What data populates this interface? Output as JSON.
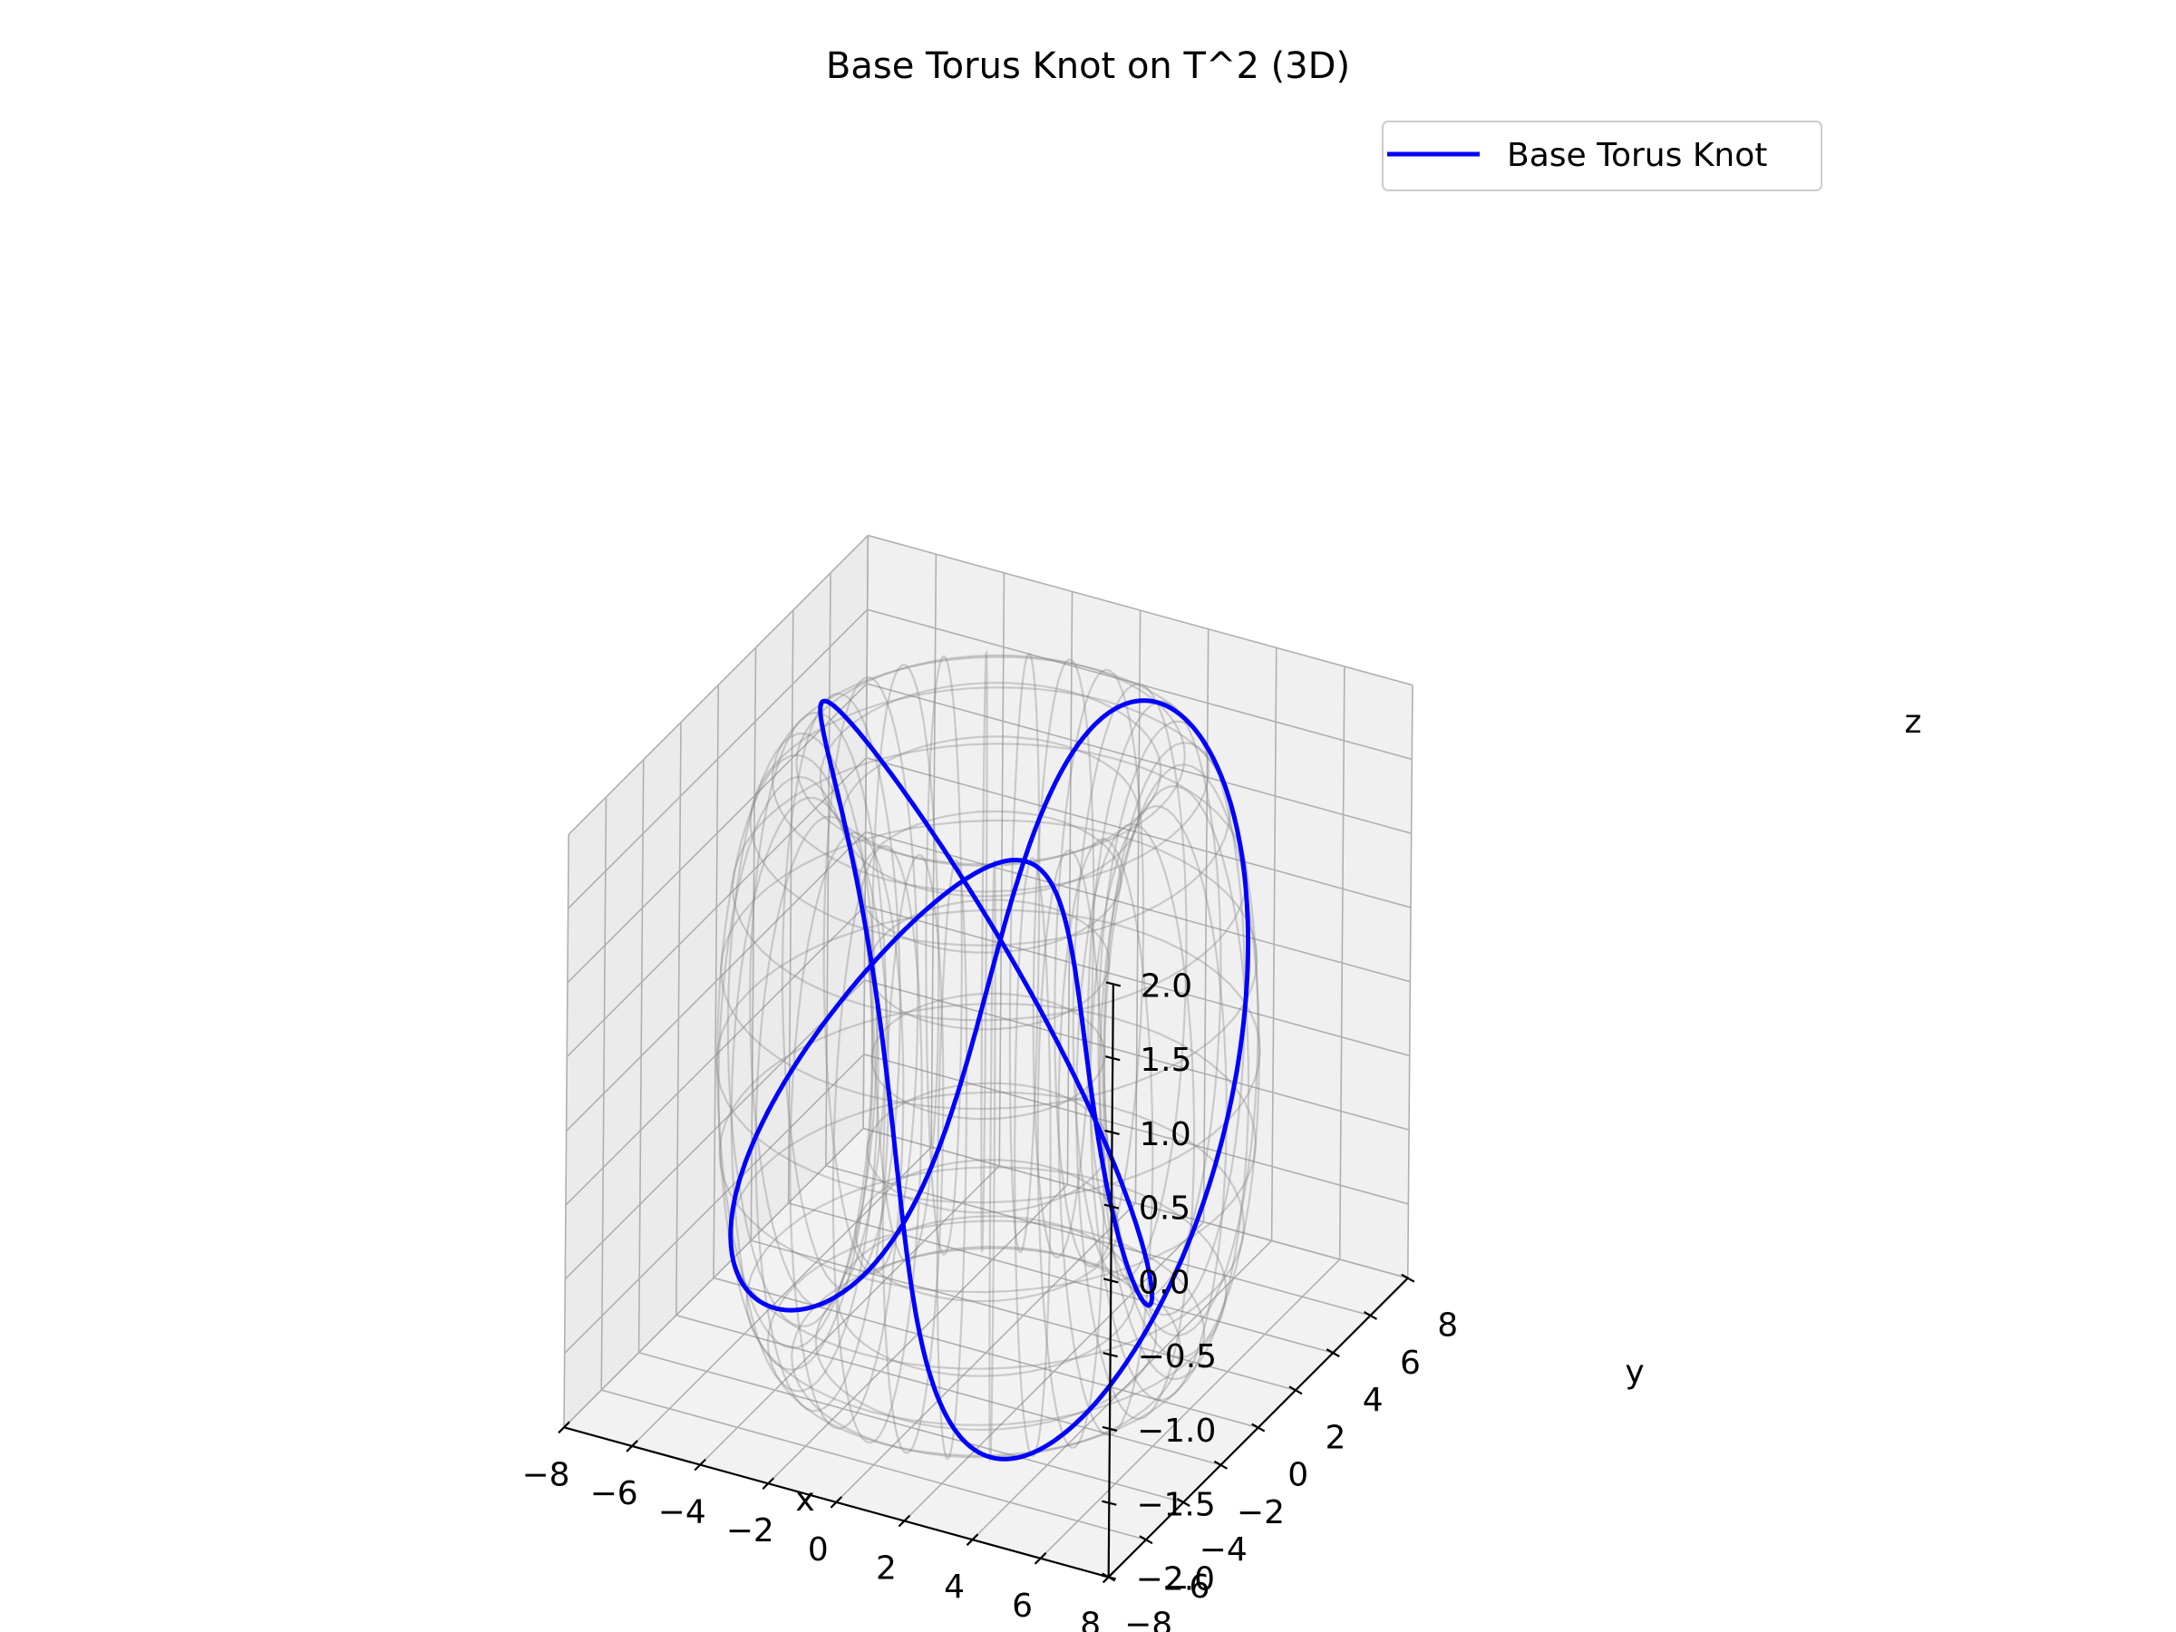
{
  "chart_data": {
    "type": "line",
    "title": "Base Torus Knot on T^2 (3D)",
    "xlabel": "x",
    "ylabel": "y",
    "zlabel": "z",
    "xlim": [
      -8,
      8
    ],
    "ylim": [
      -8,
      8
    ],
    "zlim": [
      -2,
      2
    ],
    "x_ticks": [
      "−8",
      "−6",
      "−4",
      "−2",
      "0",
      "2",
      "4",
      "6",
      "8"
    ],
    "y_ticks": [
      "−8",
      "−6",
      "−4",
      "−2",
      "0",
      "2",
      "4",
      "6",
      "8"
    ],
    "z_ticks": [
      "−2.0",
      "−1.5",
      "−1.0",
      "−0.5",
      "0.0",
      "0.5",
      "1.0",
      "1.5",
      "2.0"
    ],
    "torus": {
      "major_radius": 5,
      "minor_radius": 2,
      "color": "#808080"
    },
    "series": [
      {
        "name": "Base Torus Knot",
        "color": "#0000ff",
        "knot_p": 2,
        "knot_q": 3
      }
    ],
    "legend": {
      "position": "top-right"
    },
    "grid": true
  }
}
